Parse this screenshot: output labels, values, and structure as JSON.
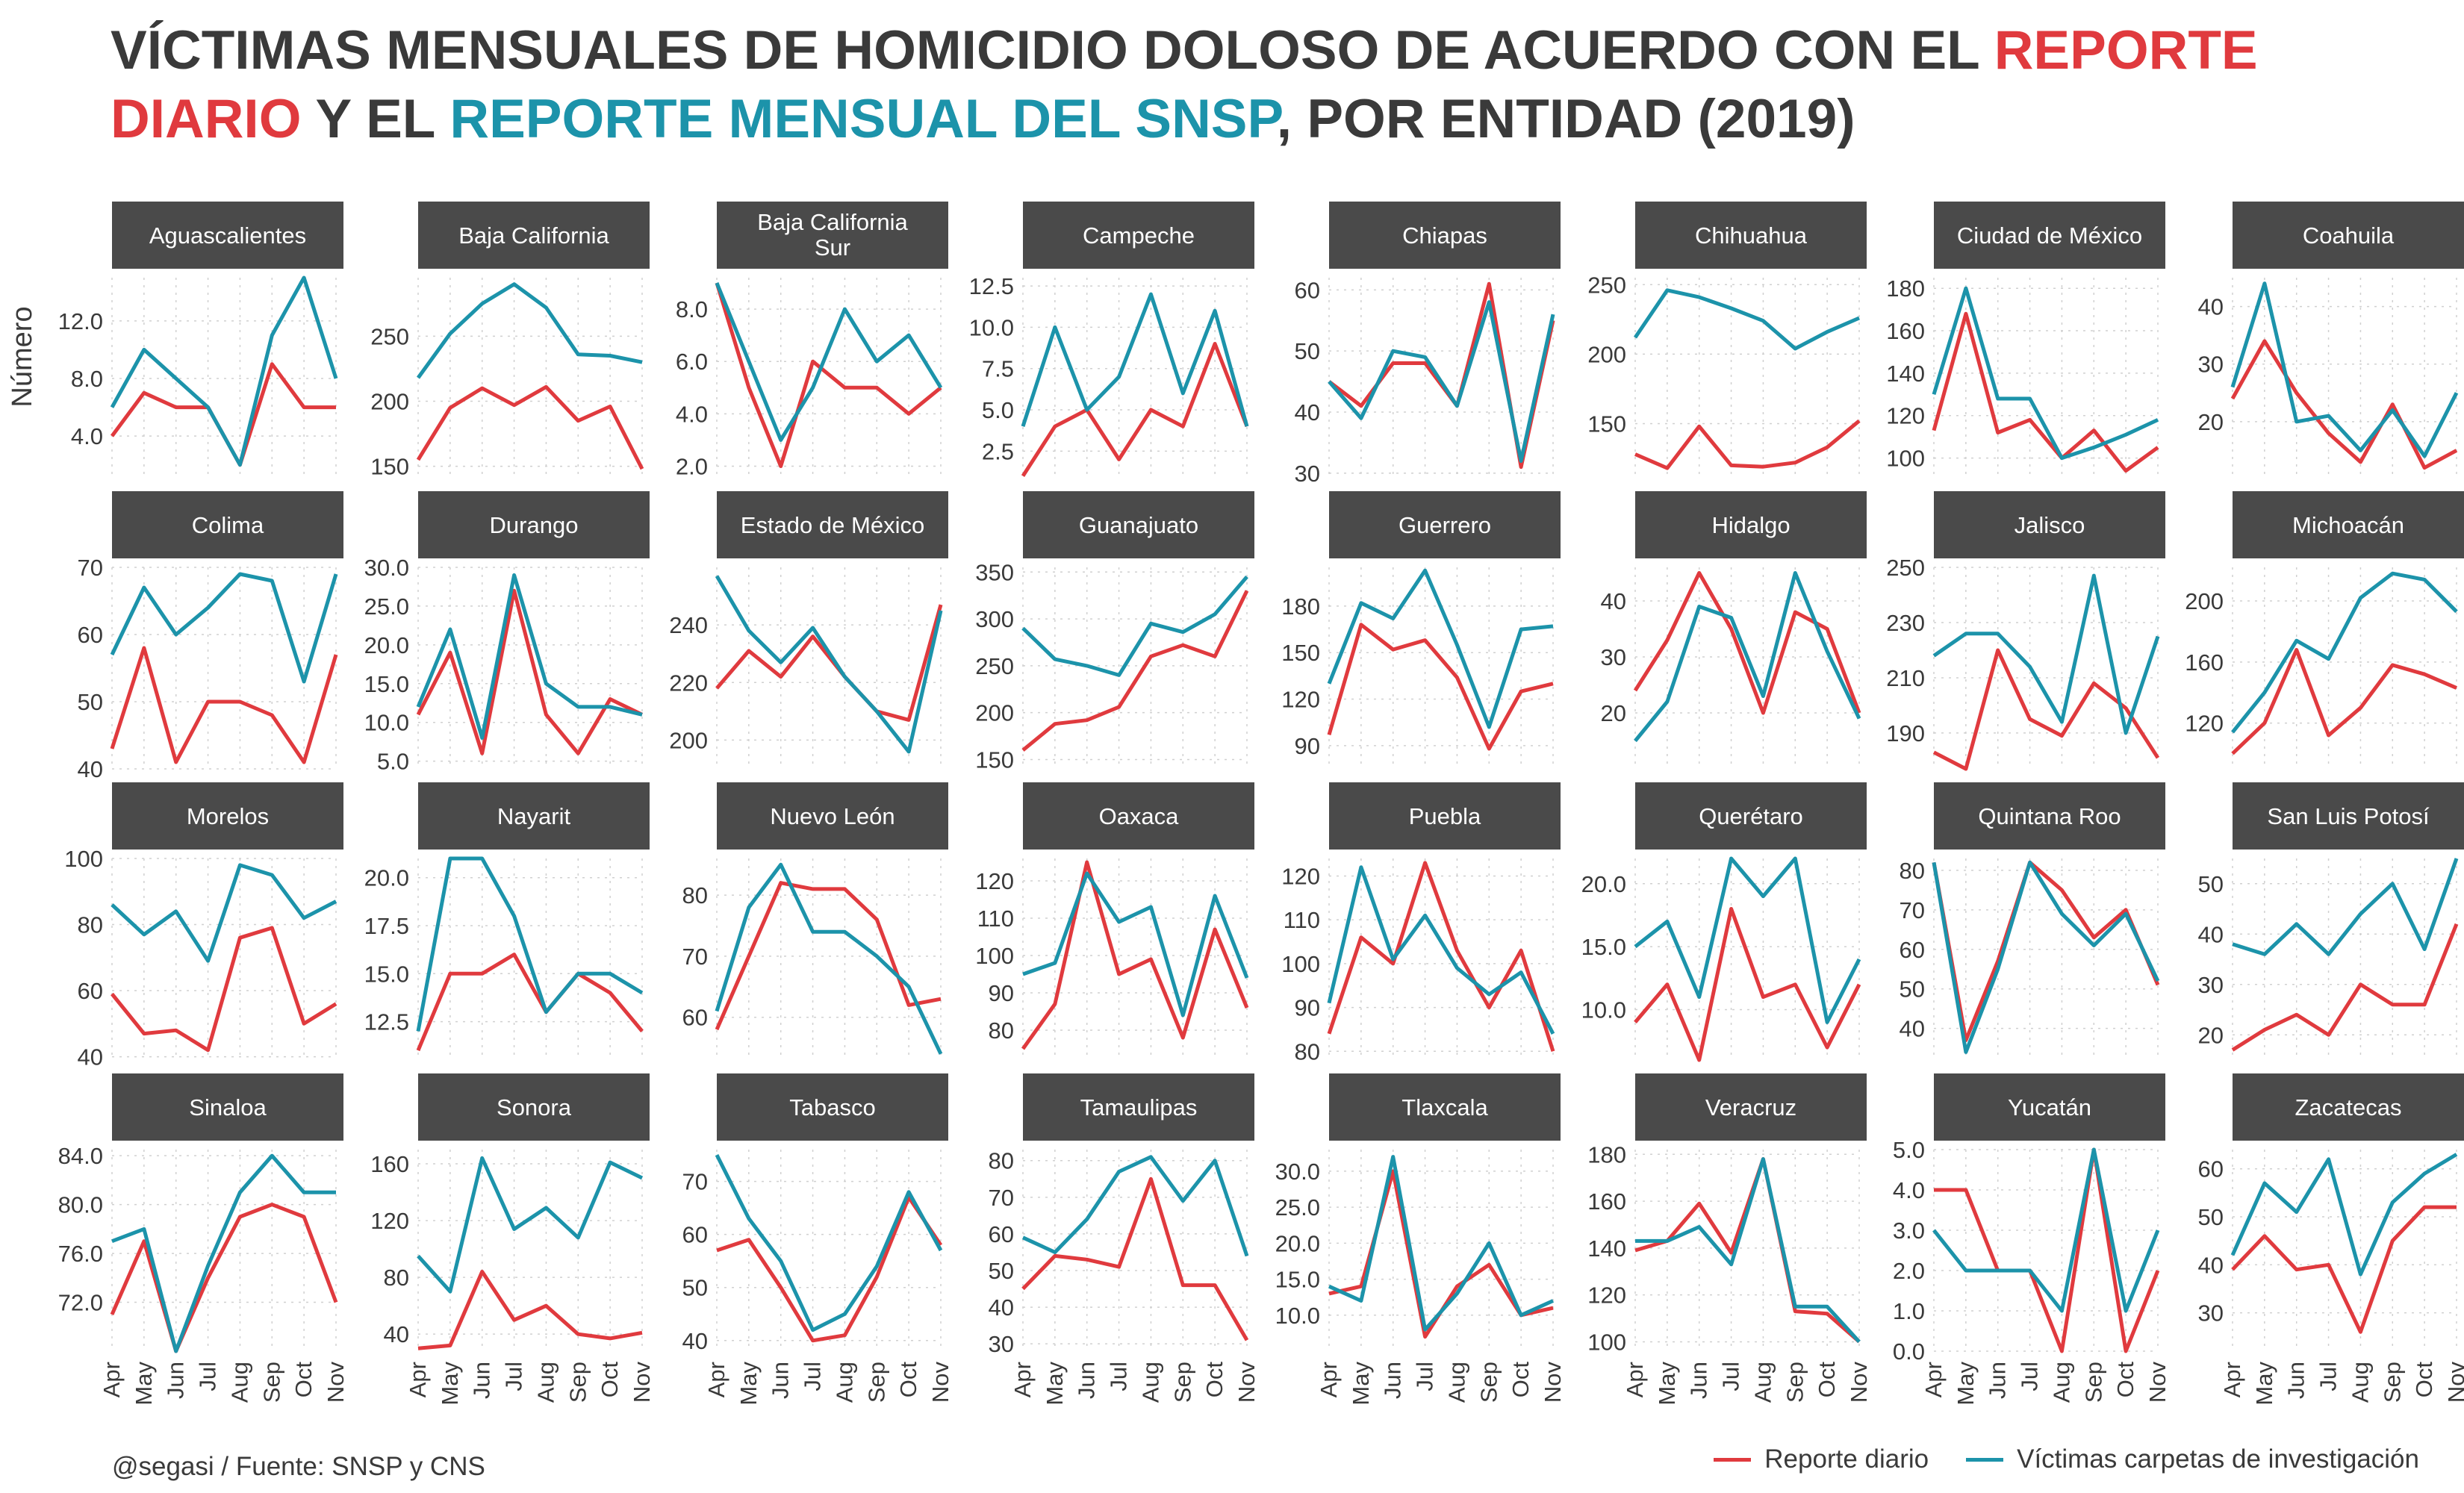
{
  "title": {
    "part1": "VÍCTIMAS MENSUALES DE HOMICIDIO DOLOSO DE ACUERDO CON EL ",
    "red": "REPORTE DIARIO",
    "part2": " Y EL ",
    "blue": "REPORTE MENSUAL DEL SNSP",
    "part3": ", POR ENTIDAD (2019)"
  },
  "ylabel": "Número",
  "caption": "@segasi / Fuente: SNSP y CNS",
  "legend": {
    "red_label": "Reporte diario",
    "blue_label": "Víctimas carpetas de investigación"
  },
  "colors": {
    "red": "#e03a3e",
    "blue": "#1c93aa",
    "strip": "#4a4a4a"
  },
  "chart_data": {
    "type": "line",
    "months": [
      "Apr",
      "May",
      "Jun",
      "Jul",
      "Aug",
      "Sep",
      "Oct",
      "Nov"
    ],
    "series_names": [
      "Reporte diario",
      "Víctimas carpetas de investigación"
    ],
    "panels": [
      {
        "name": "Aguascalientes",
        "ylim": [
          1,
          15
        ],
        "ticks": [
          4.0,
          8.0,
          12.0
        ],
        "fmt": 1,
        "red": [
          4,
          7,
          6,
          6,
          2,
          9,
          6,
          6
        ],
        "blue": [
          6,
          10,
          8,
          6,
          2,
          11,
          15,
          8
        ]
      },
      {
        "name": "Baja California",
        "ylim": [
          140,
          295
        ],
        "ticks": [
          150,
          200,
          250
        ],
        "fmt": 0,
        "red": [
          155,
          195,
          210,
          197,
          211,
          185,
          196,
          148
        ],
        "blue": [
          218,
          252,
          275,
          290,
          272,
          236,
          235,
          230
        ]
      },
      {
        "name": "Baja California Sur",
        "ylim": [
          1.5,
          9.2
        ],
        "ticks": [
          2.0,
          4.0,
          6.0,
          8.0
        ],
        "fmt": 1,
        "red": [
          9,
          5,
          2,
          6,
          5,
          5,
          4,
          5
        ],
        "blue": [
          9,
          6,
          3,
          5,
          8,
          6,
          7,
          5
        ]
      },
      {
        "name": "Campeche",
        "ylim": [
          0.8,
          13
        ],
        "ticks": [
          2.5,
          5.0,
          7.5,
          10.0,
          12.5
        ],
        "fmt": 1,
        "red": [
          1,
          4,
          5,
          2,
          5,
          4,
          9,
          4
        ],
        "blue": [
          4,
          10,
          5,
          7,
          12,
          6,
          11,
          4
        ]
      },
      {
        "name": "Chiapas",
        "ylim": [
          29,
          62
        ],
        "ticks": [
          30,
          40,
          50,
          60
        ],
        "fmt": 0,
        "red": [
          45,
          41,
          48,
          48,
          41,
          61,
          31,
          55
        ],
        "blue": [
          45,
          39,
          50,
          49,
          41,
          58,
          32,
          56
        ]
      },
      {
        "name": "Chihuahua",
        "ylim": [
          110,
          255
        ],
        "ticks": [
          150,
          200,
          250
        ],
        "fmt": 0,
        "red": [
          128,
          118,
          148,
          120,
          119,
          122,
          133,
          152
        ],
        "blue": [
          212,
          246,
          241,
          233,
          224,
          204,
          216,
          226
        ]
      },
      {
        "name": "Ciudad de México",
        "ylim": [
          90,
          185
        ],
        "ticks": [
          100,
          120,
          140,
          160,
          180
        ],
        "fmt": 0,
        "red": [
          113,
          168,
          112,
          118,
          100,
          113,
          94,
          105
        ],
        "blue": [
          130,
          180,
          128,
          128,
          100,
          105,
          111,
          118
        ]
      },
      {
        "name": "Coahuila",
        "ylim": [
          10,
          45
        ],
        "ticks": [
          20,
          30,
          40
        ],
        "fmt": 0,
        "red": [
          24,
          34,
          25,
          18,
          13,
          23,
          12,
          15
        ],
        "blue": [
          26,
          44,
          20,
          21,
          15,
          22,
          14,
          25
        ]
      },
      {
        "name": "Colima",
        "ylim": [
          40,
          70
        ],
        "ticks": [
          40,
          50,
          60,
          70
        ],
        "fmt": 0,
        "red": [
          43,
          58,
          41,
          50,
          50,
          48,
          41,
          57
        ],
        "blue": [
          57,
          67,
          60,
          64,
          69,
          68,
          53,
          69
        ]
      },
      {
        "name": "Durango",
        "ylim": [
          4,
          30
        ],
        "ticks": [
          5.0,
          10.0,
          15.0,
          20.0,
          25.0,
          30.0
        ],
        "fmt": 1,
        "red": [
          11,
          19,
          6,
          27,
          11,
          6,
          13,
          11
        ],
        "blue": [
          12,
          22,
          8,
          29,
          15,
          12,
          12,
          11
        ]
      },
      {
        "name": "Estado de México",
        "ylim": [
          190,
          260
        ],
        "ticks": [
          200,
          220,
          240
        ],
        "fmt": 0,
        "red": [
          218,
          231,
          222,
          236,
          222,
          210,
          207,
          247
        ],
        "blue": [
          257,
          238,
          227,
          239,
          222,
          210,
          196,
          245
        ]
      },
      {
        "name": "Guanajuato",
        "ylim": [
          140,
          355
        ],
        "ticks": [
          150,
          200,
          250,
          300,
          350
        ],
        "fmt": 0,
        "red": [
          160,
          188,
          192,
          206,
          260,
          272,
          260,
          330
        ],
        "blue": [
          290,
          257,
          250,
          240,
          295,
          286,
          305,
          345
        ]
      },
      {
        "name": "Guerrero",
        "ylim": [
          75,
          205
        ],
        "ticks": [
          90,
          120,
          150,
          180
        ],
        "fmt": 0,
        "red": [
          97,
          168,
          152,
          158,
          134,
          88,
          125,
          130
        ],
        "blue": [
          130,
          182,
          172,
          203,
          155,
          102,
          165,
          167
        ]
      },
      {
        "name": "Hidalgo",
        "ylim": [
          10,
          46
        ],
        "ticks": [
          20,
          30,
          40
        ],
        "fmt": 0,
        "red": [
          24,
          33,
          45,
          35,
          20,
          38,
          35,
          20
        ],
        "blue": [
          15,
          22,
          39,
          37,
          23,
          45,
          31,
          19
        ]
      },
      {
        "name": "Jalisco",
        "ylim": [
          177,
          250
        ],
        "ticks": [
          190,
          210,
          230,
          250
        ],
        "fmt": 0,
        "red": [
          183,
          177,
          220,
          195,
          189,
          208,
          199,
          181
        ],
        "blue": [
          218,
          226,
          226,
          214,
          194,
          247,
          190,
          225
        ]
      },
      {
        "name": "Michoacán",
        "ylim": [
          90,
          222
        ],
        "ticks": [
          120,
          160,
          200
        ],
        "fmt": 0,
        "red": [
          100,
          120,
          168,
          112,
          130,
          158,
          152,
          143
        ],
        "blue": [
          114,
          140,
          174,
          162,
          202,
          218,
          214,
          193
        ]
      },
      {
        "name": "Morelos",
        "ylim": [
          39,
          100
        ],
        "ticks": [
          40,
          60,
          80,
          100
        ],
        "fmt": 0,
        "red": [
          59,
          47,
          48,
          42,
          76,
          79,
          50,
          56
        ],
        "blue": [
          86,
          77,
          84,
          69,
          98,
          95,
          82,
          87
        ]
      },
      {
        "name": "Nayarit",
        "ylim": [
          10.5,
          21
        ],
        "ticks": [
          12.5,
          15.0,
          17.5,
          20.0
        ],
        "fmt": 1,
        "red": [
          11,
          15,
          15,
          16,
          13,
          15,
          14,
          12
        ],
        "blue": [
          12,
          21,
          21,
          18,
          13,
          15,
          15,
          14
        ]
      },
      {
        "name": "Nuevo León",
        "ylim": [
          53,
          86
        ],
        "ticks": [
          60,
          70,
          80
        ],
        "fmt": 0,
        "red": [
          58,
          70,
          82,
          81,
          81,
          76,
          62,
          63
        ],
        "blue": [
          61,
          78,
          85,
          74,
          74,
          70,
          65,
          54
        ]
      },
      {
        "name": "Oaxaca",
        "ylim": [
          72,
          126
        ],
        "ticks": [
          80,
          90,
          100,
          110,
          120
        ],
        "fmt": 0,
        "red": [
          75,
          87,
          125,
          95,
          99,
          78,
          107,
          86
        ],
        "blue": [
          95,
          98,
          122,
          109,
          113,
          84,
          116,
          94
        ]
      },
      {
        "name": "Puebla",
        "ylim": [
          78,
          124
        ],
        "ticks": [
          80,
          90,
          100,
          110,
          120
        ],
        "fmt": 0,
        "red": [
          84,
          106,
          100,
          123,
          103,
          90,
          103,
          80
        ],
        "blue": [
          91,
          122,
          101,
          111,
          99,
          93,
          98,
          84
        ]
      },
      {
        "name": "Querétaro",
        "ylim": [
          6,
          22
        ],
        "ticks": [
          10.0,
          15.0,
          20.0
        ],
        "fmt": 1,
        "red": [
          9,
          12,
          6,
          18,
          11,
          12,
          7,
          12
        ],
        "blue": [
          15,
          17,
          11,
          22,
          19,
          22,
          9,
          14
        ]
      },
      {
        "name": "Quintana Roo",
        "ylim": [
          32,
          83
        ],
        "ticks": [
          40,
          50,
          60,
          70,
          80
        ],
        "fmt": 0,
        "red": [
          82,
          37,
          57,
          82,
          75,
          63,
          70,
          51
        ],
        "blue": [
          82,
          34,
          55,
          82,
          69,
          61,
          69,
          52
        ]
      },
      {
        "name": "San Luis Potosí",
        "ylim": [
          15,
          55
        ],
        "ticks": [
          20,
          30,
          40,
          50
        ],
        "fmt": 0,
        "red": [
          17,
          21,
          24,
          20,
          30,
          26,
          26,
          42
        ],
        "blue": [
          38,
          36,
          42,
          36,
          44,
          50,
          37,
          55
        ]
      },
      {
        "name": "Sinaloa",
        "ylim": [
          68,
          84.5
        ],
        "ticks": [
          72.0,
          76.0,
          80.0,
          84.0
        ],
        "fmt": 1,
        "red": [
          71,
          77,
          68,
          74,
          79,
          80,
          79,
          72
        ],
        "blue": [
          77,
          78,
          68,
          75,
          81,
          84,
          81,
          81
        ]
      },
      {
        "name": "Sonora",
        "ylim": [
          28,
          170
        ],
        "ticks": [
          40,
          80,
          120,
          160
        ],
        "fmt": 0,
        "red": [
          30,
          32,
          84,
          50,
          60,
          40,
          37,
          41
        ],
        "blue": [
          95,
          70,
          164,
          114,
          129,
          108,
          161,
          150
        ]
      },
      {
        "name": "Tabasco",
        "ylim": [
          38,
          76
        ],
        "ticks": [
          40,
          50,
          60,
          70
        ],
        "fmt": 0,
        "red": [
          57,
          59,
          50,
          40,
          41,
          52,
          67,
          58
        ],
        "blue": [
          75,
          63,
          55,
          42,
          45,
          54,
          68,
          57
        ]
      },
      {
        "name": "Tamaulipas",
        "ylim": [
          28,
          83
        ],
        "ticks": [
          30,
          40,
          50,
          60,
          70,
          80
        ],
        "fmt": 0,
        "red": [
          45,
          54,
          53,
          51,
          75,
          46,
          46,
          31
        ],
        "blue": [
          59,
          55,
          64,
          77,
          81,
          69,
          80,
          54
        ]
      },
      {
        "name": "Tlaxcala",
        "ylim": [
          5,
          33
        ],
        "ticks": [
          10.0,
          15.0,
          20.0,
          25.0,
          30.0
        ],
        "fmt": 1,
        "red": [
          13,
          14,
          30,
          7,
          14,
          17,
          10,
          11
        ],
        "blue": [
          14,
          12,
          32,
          8,
          13,
          20,
          10,
          12
        ]
      },
      {
        "name": "Veracruz",
        "ylim": [
          96,
          182
        ],
        "ticks": [
          100,
          120,
          140,
          160,
          180
        ],
        "fmt": 0,
        "red": [
          139,
          143,
          159,
          138,
          178,
          113,
          112,
          100
        ],
        "blue": [
          143,
          143,
          149,
          133,
          178,
          115,
          115,
          100
        ]
      },
      {
        "name": "Yucatán",
        "ylim": [
          0,
          5
        ],
        "ticks": [
          0.0,
          1.0,
          2.0,
          3.0,
          4.0,
          5.0
        ],
        "fmt": 1,
        "red": [
          4,
          4,
          2,
          2,
          0,
          5,
          0,
          2
        ],
        "blue": [
          3,
          2,
          2,
          2,
          1,
          5,
          1,
          3
        ]
      },
      {
        "name": "Zacatecas",
        "ylim": [
          22,
          64
        ],
        "ticks": [
          30,
          40,
          50,
          60
        ],
        "fmt": 0,
        "red": [
          39,
          46,
          39,
          40,
          26,
          45,
          52,
          52
        ],
        "blue": [
          42,
          57,
          51,
          62,
          38,
          53,
          59,
          63
        ]
      }
    ]
  }
}
